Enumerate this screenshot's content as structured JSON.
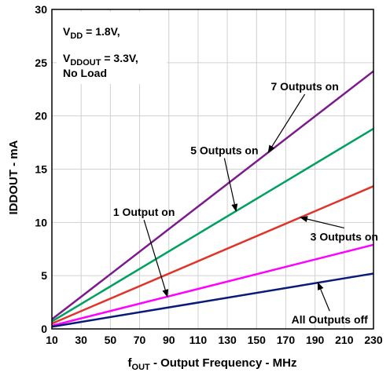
{
  "chart_data": {
    "type": "line",
    "xlabel_main": "f",
    "xlabel_sub": "OUT",
    "xlabel_rest": " - Output Frequency - MHz",
    "ylabel": "IDDOUT - mA",
    "xlim": [
      10,
      230
    ],
    "ylim": [
      0,
      30
    ],
    "xticks": [
      10,
      30,
      50,
      70,
      90,
      110,
      130,
      150,
      170,
      190,
      210,
      230
    ],
    "yticks": [
      0,
      5,
      10,
      15,
      20,
      25,
      30
    ],
    "grid": true,
    "conditions": {
      "vdd_prefix": "V",
      "vdd_sub": "DD",
      "vdd_value": " = 1.8V,",
      "vddout_prefix": "V",
      "vddout_sub": "DDOUT",
      "vddout_value": " = 3.3V,",
      "load": "No Load"
    },
    "series": [
      {
        "name": "7 Outputs on",
        "color": "#7b1a8c",
        "x": [
          10,
          230
        ],
        "y": [
          0.9,
          24.2
        ]
      },
      {
        "name": "5 Outputs on",
        "color": "#00a060",
        "x": [
          10,
          230
        ],
        "y": [
          0.7,
          18.8
        ]
      },
      {
        "name": "3 Outputs on",
        "color": "#e0332a",
        "x": [
          10,
          230
        ],
        "y": [
          0.5,
          13.4
        ]
      },
      {
        "name": "1 Output on",
        "color": "#ff00ff",
        "x": [
          10,
          230
        ],
        "y": [
          0.3,
          7.9
        ]
      },
      {
        "name": "All Outputs off",
        "color": "#0a1a7a",
        "x": [
          10,
          230
        ],
        "y": [
          0.2,
          5.2
        ]
      }
    ],
    "annotations": [
      {
        "text": "7 Outputs on",
        "series": 0,
        "text_x": 183,
        "text_y": 22.4,
        "arrow_to_x": 158
      },
      {
        "text": "5 Outputs on",
        "series": 1,
        "text_x": 128,
        "text_y": 16.4,
        "arrow_to_x": 136
      },
      {
        "text": "3 Outputs on",
        "series": 2,
        "text_x": 210,
        "text_y": 8.3,
        "arrow_to_x": 180
      },
      {
        "text": "1 Output on",
        "series": 3,
        "text_x": 73,
        "text_y": 10.6,
        "arrow_to_x": 89
      },
      {
        "text": "All Outputs off",
        "series": 4,
        "text_x": 200,
        "text_y": 0.5,
        "arrow_to_x": 192
      }
    ]
  }
}
